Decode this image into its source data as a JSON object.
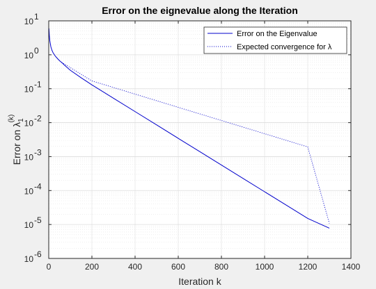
{
  "chart_data": {
    "type": "line",
    "title": "Error on the eignevalue along the Iteration",
    "xlabel": "Iteration k",
    "ylabel": "Error on λ",
    "ylabel_sub": "1",
    "ylabel_sup": "(k)",
    "xlim": [
      0,
      1400
    ],
    "ylim": [
      1e-06,
      10
    ],
    "yscale": "log",
    "grid": "major and minor",
    "legend_position": "top-right",
    "x_ticks": [
      0,
      200,
      400,
      600,
      800,
      1000,
      1200,
      1400
    ],
    "y_ticks": [
      {
        "value": 1e-06,
        "base": "10",
        "exp": "-6"
      },
      {
        "value": 1e-05,
        "base": "10",
        "exp": "-5"
      },
      {
        "value": 0.0001,
        "base": "10",
        "exp": "-4"
      },
      {
        "value": 0.001,
        "base": "10",
        "exp": "-3"
      },
      {
        "value": 0.01,
        "base": "10",
        "exp": "-2"
      },
      {
        "value": 0.1,
        "base": "10",
        "exp": "-1"
      },
      {
        "value": 1,
        "base": "10",
        "exp": "0"
      },
      {
        "value": 10,
        "base": "10",
        "exp": "1"
      }
    ],
    "series": [
      {
        "name": "Error on the Eigenvalue",
        "color": "#0000cc",
        "style": "solid",
        "x": [
          1,
          3,
          5,
          10,
          15,
          20,
          30,
          40,
          50,
          60,
          80,
          100,
          150,
          200,
          300,
          400,
          500,
          600,
          700,
          800,
          900,
          1000,
          1100,
          1200,
          1300
        ],
        "y": [
          6.0,
          3.6,
          2.6,
          1.7,
          1.35,
          1.15,
          0.92,
          0.78,
          0.67,
          0.59,
          0.45,
          0.35,
          0.21,
          0.13,
          0.0525,
          0.0212,
          0.0086,
          0.00345,
          0.0014,
          0.000565,
          0.000228,
          9.22e-05,
          3.73e-05,
          1.51e-05,
          7.8e-06
        ]
      },
      {
        "name": "Expected convergence for λ",
        "color": "#0000cc",
        "style": "dotted",
        "x": [
          60,
          200,
          400,
          600,
          800,
          1000,
          1200,
          1300
        ],
        "y": [
          0.6,
          0.17,
          0.0694,
          0.0283,
          0.0116,
          0.00473,
          0.00193,
          1.08e-05
        ]
      }
    ]
  }
}
